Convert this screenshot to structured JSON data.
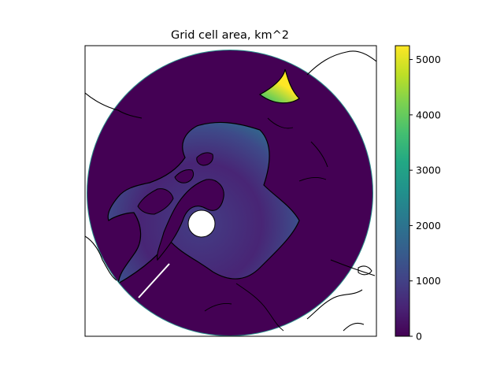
{
  "chart_data": {
    "type": "heatmap",
    "title": "Grid cell area, km^2",
    "projection": "north-polar-stereographic",
    "colormap": "viridis",
    "colormap_colors": [
      "#440154",
      "#482475",
      "#414487",
      "#355f8d",
      "#2a788e",
      "#21918c",
      "#22a884",
      "#44bf70",
      "#7ad151",
      "#bddf26",
      "#fde725"
    ],
    "land_fill_color": "#440154",
    "coastline_color": "#000000",
    "pole_hole_color": "#ffffff",
    "colorbar": {
      "vmin": 0,
      "vmax": 5250,
      "ticks": [
        0,
        1000,
        2000,
        3000,
        4000,
        5000
      ],
      "tick_labels": [
        "0",
        "1000",
        "2000",
        "3000",
        "4000",
        "5000"
      ]
    },
    "grid": false,
    "legend": "none"
  }
}
